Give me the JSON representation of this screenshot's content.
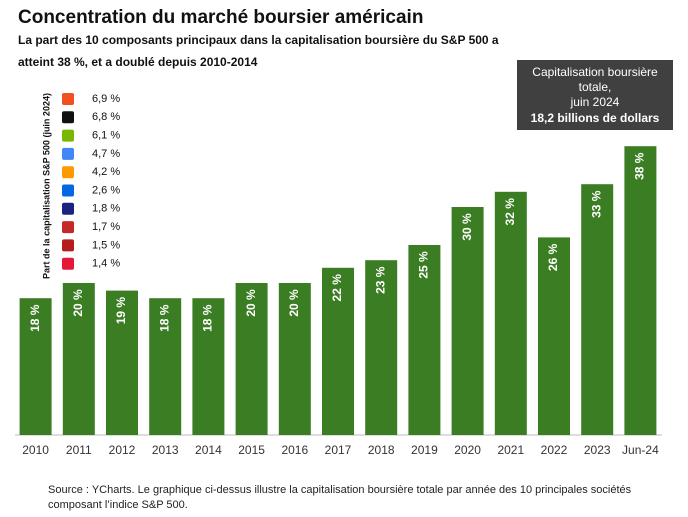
{
  "chart_data": {
    "type": "bar",
    "title": "Concentration du marché boursier américain",
    "subtitle": [
      "La part des 10 composants principaux dans la capitalisation boursière du S&P 500 a",
      "atteint 38 %, et a doublé depuis 2010-2014"
    ],
    "categories": [
      "2010",
      "2011",
      "2012",
      "2013",
      "2014",
      "2015",
      "2016",
      "2017",
      "2018",
      "2019",
      "2020",
      "2021",
      "2022",
      "2023",
      "Jun-24"
    ],
    "values": [
      18,
      20,
      19,
      18,
      18,
      20,
      20,
      22,
      23,
      25,
      30,
      32,
      26,
      33,
      38
    ],
    "value_labels": [
      "18 %",
      "20 %",
      "19 %",
      "18 %",
      "18 %",
      "20 %",
      "20 %",
      "22 %",
      "23 %",
      "25 %",
      "30 %",
      "32 %",
      "26 %",
      "33 %",
      "38 %"
    ],
    "color": "#3b7d23",
    "ylim": [
      0,
      40
    ],
    "side_list_title": "Part de la capitalisation S&P 500 (juin 2024)",
    "side_list": [
      "6,9 %",
      "6,8 %",
      "6,1 %",
      "4,7 %",
      "4,2 %",
      "2,6 %",
      "1,8 %",
      "1,7 %",
      "1,5 %",
      "1,4 %"
    ],
    "callout": {
      "lines": [
        "Capitalisation boursière",
        "totale,",
        "juin 2024"
      ],
      "value": "18,2 billions de dollars"
    },
    "source": "Source : YCharts. Le graphique ci-dessus illustre la capitalisation boursière totale par année des 10 principales sociétés composant l’indice S&P 500."
  }
}
